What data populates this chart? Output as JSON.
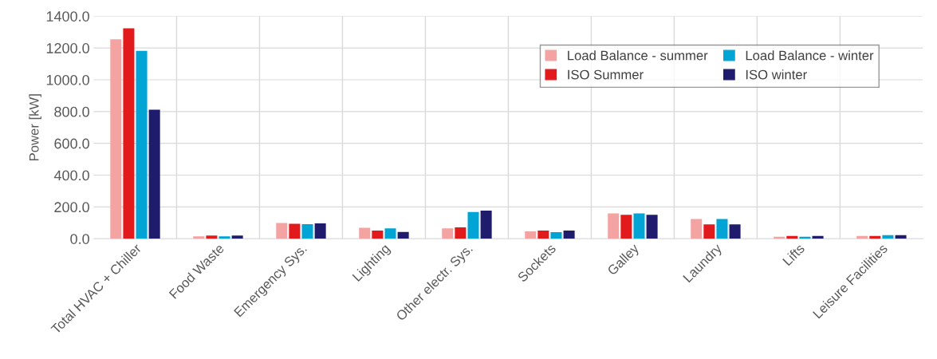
{
  "chart_data": {
    "type": "bar",
    "ylabel": "Power [kW]",
    "categories": [
      "Total HVAC + Chiller",
      "Food Waste",
      "Emergency Sys.",
      "Lighting",
      "Other electr. Sys.",
      "Sockets",
      "Galley",
      "Laundry",
      "Lifts",
      "Leisure Facilities"
    ],
    "series": [
      {
        "name": "Load Balance - summer",
        "color": "#f4a3a3",
        "values": [
          1254,
          15,
          99,
          69,
          65,
          46,
          159,
          124,
          12,
          17
        ]
      },
      {
        "name": "ISO Summer",
        "color": "#e31a1c",
        "values": [
          1324,
          20,
          94,
          51,
          72,
          52,
          150,
          90,
          17,
          17
        ]
      },
      {
        "name": "Load Balance - winter",
        "color": "#00a5d6",
        "values": [
          1182,
          15,
          91,
          65,
          168,
          42,
          159,
          124,
          12,
          22
        ]
      },
      {
        "name": "ISO winter",
        "color": "#1f1c6e",
        "values": [
          812,
          20,
          96,
          43,
          177,
          52,
          150,
          90,
          17,
          22
        ]
      }
    ],
    "ylim": [
      0,
      1400
    ],
    "yticks": [
      {
        "value": 0,
        "label": "0.0"
      },
      {
        "value": 200,
        "label": "200.0"
      },
      {
        "value": 400,
        "label": "400.0"
      },
      {
        "value": 600,
        "label": "600.0"
      },
      {
        "value": 800,
        "label": "800.0"
      },
      {
        "value": 1000,
        "label": "1000.0"
      },
      {
        "value": 1200,
        "label": "1200.0"
      },
      {
        "value": 1400,
        "label": "1400.0"
      }
    ],
    "grid": true,
    "legend": "top right"
  }
}
